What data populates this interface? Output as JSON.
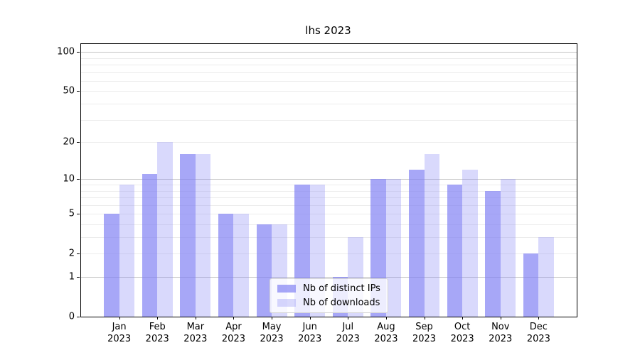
{
  "chart_data": {
    "type": "bar",
    "title": "lhs 2023",
    "categories": [
      "Jan",
      "Feb",
      "Mar",
      "Apr",
      "May",
      "Jun",
      "Jul",
      "Aug",
      "Sep",
      "Oct",
      "Nov",
      "Dec"
    ],
    "category_year": "2023",
    "series": [
      {
        "name": "Nb of distinct IPs",
        "values": [
          5,
          11,
          16,
          5,
          4,
          9,
          1,
          10,
          12,
          9,
          8,
          2
        ],
        "color": "#8282f4",
        "alpha": 0.7
      },
      {
        "name": "Nb of downloads",
        "values": [
          9,
          20,
          16,
          5,
          4,
          9,
          3,
          10,
          16,
          12,
          10,
          3
        ],
        "color": "#8282f4",
        "alpha": 0.3
      }
    ],
    "yscale": "log1p",
    "ylim": [
      0,
      115
    ],
    "yticks": [
      0,
      1,
      2,
      5,
      10,
      20,
      50,
      100
    ],
    "grid": {
      "major": [
        1,
        10,
        100
      ],
      "minor": [
        2,
        3,
        4,
        5,
        6,
        7,
        8,
        9,
        20,
        30,
        40,
        50,
        60,
        70,
        80,
        90
      ],
      "major_color": "#c4c4c4",
      "minor_color": "#ececec"
    },
    "legend": {
      "position": "lower center"
    },
    "bar_width_fraction": 0.4,
    "axis_color": "#000000",
    "background_color": "#ffffff"
  }
}
